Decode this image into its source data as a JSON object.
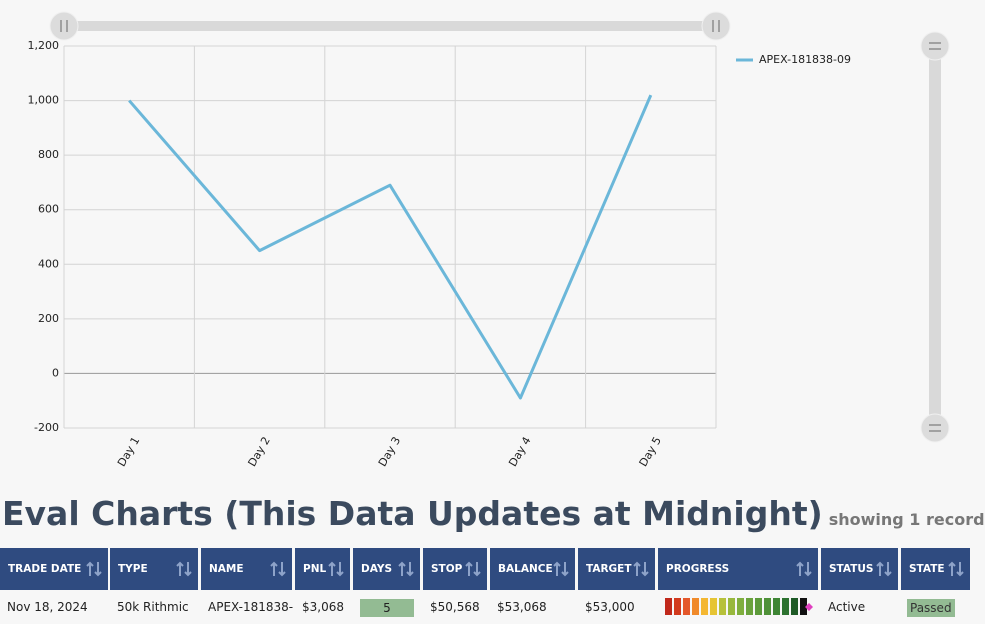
{
  "chart_data": {
    "type": "line",
    "categories": [
      "Day 1",
      "Day 2",
      "Day 3",
      "Day 4",
      "Day 5"
    ],
    "series": [
      {
        "name": "APEX-181838-09",
        "color": "#6bb7d9",
        "values": [
          1000,
          450,
          690,
          -90,
          1020
        ]
      }
    ],
    "ylim": [
      -200,
      1200
    ],
    "yticks": [
      -200,
      0,
      200,
      400,
      600,
      800,
      {
        "value": 1000,
        "label": "1,000"
      },
      {
        "value": 1200,
        "label": "1,200"
      }
    ],
    "grid": true,
    "legend": "right"
  },
  "heading": {
    "title": "Eval Charts (This Data Updates at Midnight)",
    "subtitle": "showing 1 record"
  },
  "table": {
    "columns": [
      "TRADE DATE",
      "TYPE",
      "NAME",
      "PNL",
      "DAYS",
      "STOP",
      "BALANCE",
      "TARGET",
      "PROGRESS",
      "STATUS",
      "STATE"
    ],
    "rows": [
      [
        "Nov 18, 2024",
        "50k Rithmic",
        "APEX-181838-",
        "$3,068",
        "5",
        "$50,568",
        "$53,068",
        "$53,000",
        "",
        "Active",
        "Passed"
      ]
    ]
  }
}
